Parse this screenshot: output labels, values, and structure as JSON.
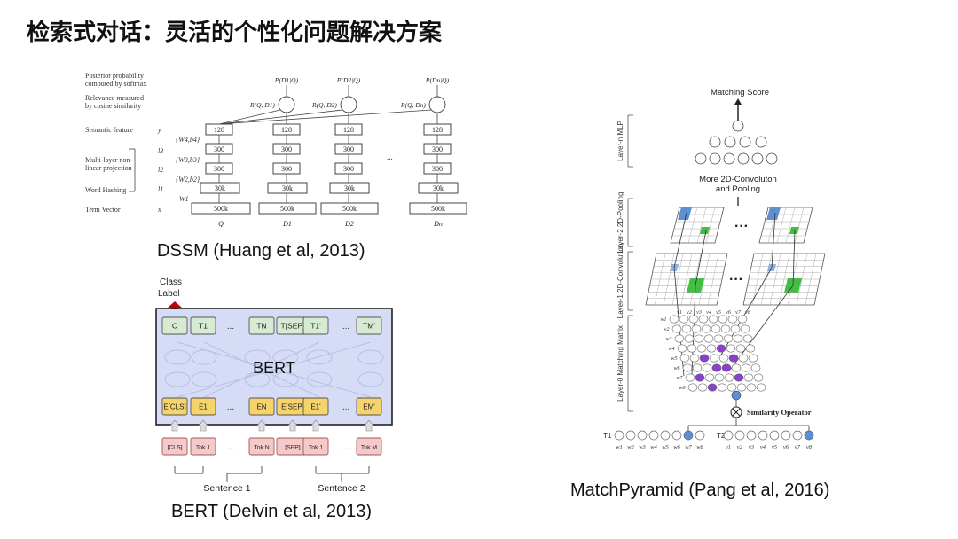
{
  "title": "检索式对话：灵活的个性化问题解决方案",
  "dssm": {
    "caption": "DSSM (Huang et al, 2013)",
    "left_labels": [
      "Posterior probability",
      "computed by softmax",
      "Relevance measured",
      "by cosine similarity",
      "Semantic feature",
      "Multi-layer non-",
      "linear projection",
      "Word Hashing",
      "Term Vector"
    ],
    "var_labels": [
      "y",
      "l3",
      "l2",
      "l1",
      "x"
    ],
    "weights": [
      "{W4,b4}",
      "{W3,b3}",
      "{W2,b2}",
      "W1"
    ],
    "layers": [
      "128",
      "300",
      "300",
      "30k",
      "500k"
    ],
    "columns": [
      "Q",
      "D1",
      "D2",
      "Dn"
    ],
    "rel": [
      "R(Q, D1)",
      "R(Q, D2)",
      "R(Q, Dn)"
    ],
    "post": [
      "P(D1|Q)",
      "P(D2|Q)",
      "P(Dn|Q)"
    ],
    "dots": "..."
  },
  "bert": {
    "caption": "BERT (Delvin et al, 2013)",
    "class_label": [
      "Class",
      "Label"
    ],
    "title": "BERT",
    "top": [
      "C",
      "T1",
      "...",
      "TN",
      "T[SEP]",
      "T1'",
      "...",
      "TM'"
    ],
    "emb": [
      "E[CLS]",
      "E1",
      "...",
      "EN",
      "E[SEP]",
      "E1'",
      "...",
      "EM'"
    ],
    "tok": [
      "[CLS]",
      "Tok 1",
      "...",
      "Tok N",
      "[SEP]",
      "Tok 1",
      "...",
      "Tok M"
    ],
    "sentences": [
      "Sentence 1",
      "Sentence 2"
    ]
  },
  "matchpyramid": {
    "caption": "MatchPyramid (Pang et al, 2016)",
    "matching_score": "Matching Score",
    "more_conv": [
      "More 2D-Convoluton",
      "and Pooling"
    ],
    "layers": [
      "Layer-n MLP",
      "Layer-2 2D-Pooling",
      "Layer-1 2D-Convolution",
      "Layer-0 Matching Matrix"
    ],
    "similarity": "Similarity Operator",
    "t1": "T1",
    "t2": "T2",
    "t1_words": [
      "w1",
      "w2",
      "w3",
      "w4",
      "w5",
      "w6",
      "w7",
      "w8"
    ],
    "t2_words": [
      "v1",
      "v2",
      "v3",
      "v4",
      "v5",
      "v6",
      "v7",
      "v8"
    ],
    "dots": "···"
  },
  "colors": {
    "blue": "#5b8fd6",
    "green": "#3fbf3f",
    "purple": "#8a3fd1",
    "bert_bg": "#d6dcf5",
    "bert_yellow": "#f6d36b",
    "bert_green": "#d7ead2",
    "bert_pink": "#f4c9c9",
    "red": "#c00000"
  }
}
